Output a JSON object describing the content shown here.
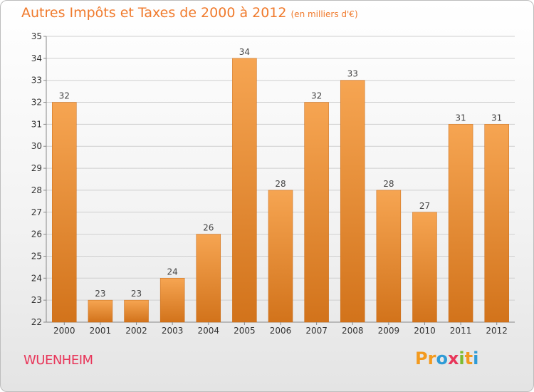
{
  "commune": "WUENHEIM",
  "logo": {
    "letters": [
      "P",
      "r",
      "o",
      "x",
      "i",
      "t",
      "i"
    ],
    "colors": [
      "#f39a1e",
      "#f39a1e",
      "#2e9bd6",
      "#e8365a",
      "#7dbb2e",
      "#f39a1e",
      "#2e9bd6"
    ]
  },
  "colors": {
    "bar_top": "#f6a552",
    "bar_bottom": "#d2731b",
    "title": "#f07a2c",
    "commune": "#e8365a",
    "grid": "#cfcfcf"
  },
  "chart_data": {
    "type": "bar",
    "title": "Autres Impôts et Taxes de 2000 à 2012",
    "subtitle": "(en milliers d'€)",
    "xlabel": "",
    "ylabel": "",
    "categories": [
      "2000",
      "2001",
      "2002",
      "2003",
      "2004",
      "2005",
      "2006",
      "2007",
      "2008",
      "2009",
      "2010",
      "2011",
      "2012"
    ],
    "values": [
      32,
      23,
      23,
      24,
      26,
      34,
      28,
      32,
      33,
      28,
      27,
      31,
      31
    ],
    "ylim": [
      22,
      35
    ],
    "yticks": [
      22,
      23,
      24,
      25,
      26,
      27,
      28,
      29,
      30,
      31,
      32,
      33,
      34,
      35
    ],
    "grid": true,
    "legend": "none"
  }
}
